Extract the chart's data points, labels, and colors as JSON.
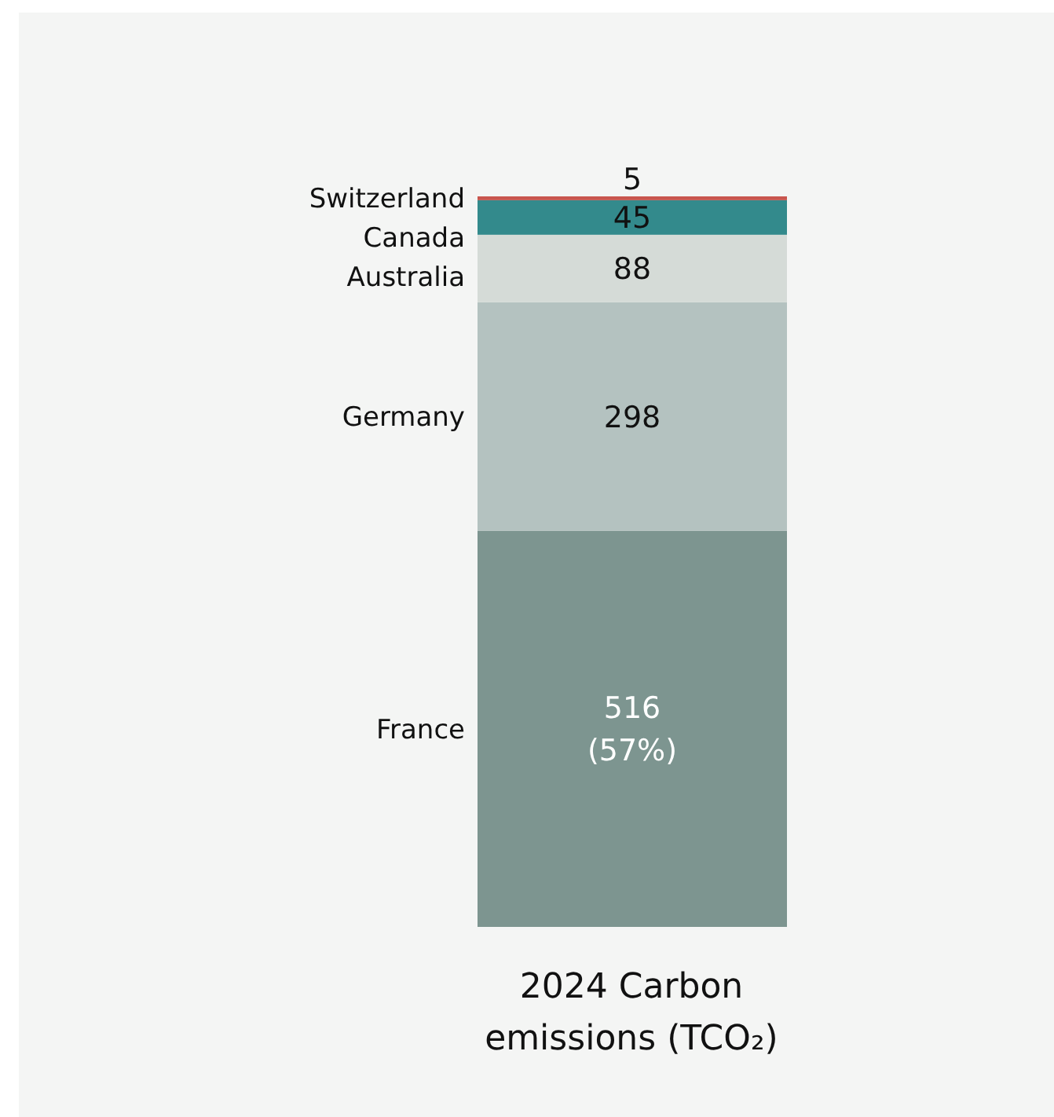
{
  "chart_data": {
    "type": "bar",
    "stacked": true,
    "xlabel": "2024 Carbon emissions (TCO₂)",
    "categories": [
      null
    ],
    "series": [
      {
        "name": "France",
        "color": "#7d9590",
        "values": [
          516
        ],
        "value_labels": [
          "516\n(57%)"
        ]
      },
      {
        "name": "Germany",
        "color": "#b4c2c0",
        "values": [
          298
        ],
        "value_labels": [
          "298"
        ]
      },
      {
        "name": "Australia",
        "color": "#d5dbd7",
        "values": [
          88
        ],
        "value_labels": [
          "88"
        ]
      },
      {
        "name": "Canada",
        "color": "#338a8c",
        "values": [
          45
        ],
        "value_labels": [
          "45"
        ]
      },
      {
        "name": "Switzerland",
        "color": "#c8564e",
        "values": [
          5
        ],
        "value_labels": [
          "5"
        ]
      }
    ]
  }
}
